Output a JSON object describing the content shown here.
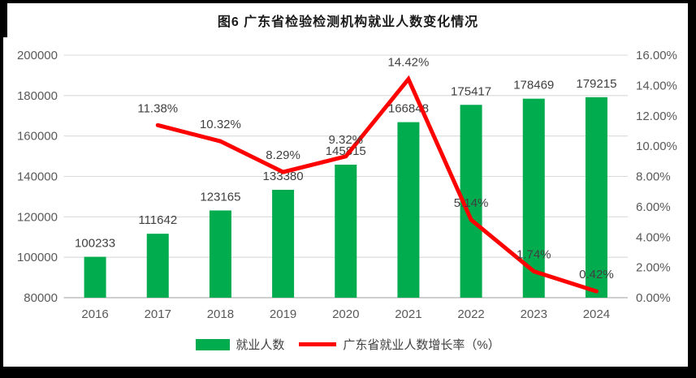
{
  "frame": {
    "background": "#000000",
    "canvas_background": "#ffffff"
  },
  "chart_data": {
    "type": "bar",
    "subtype": "combo-bar-line",
    "title": "图6  广东省检验检测机构就业人数变化情况",
    "categories": [
      "2016",
      "2017",
      "2018",
      "2019",
      "2020",
      "2021",
      "2022",
      "2023",
      "2024"
    ],
    "series": [
      {
        "name": "就业人数",
        "chart": "bar",
        "axis": "left",
        "color": "#00AC4E",
        "values": [
          100233,
          111642,
          123165,
          133380,
          145815,
          166848,
          175417,
          178469,
          179215
        ],
        "value_labels": [
          "100233",
          "111642",
          "123165",
          "133380",
          "145815",
          "166848",
          "175417",
          "178469",
          "179215"
        ]
      },
      {
        "name": "广东省就业人数增长率（%）",
        "chart": "line",
        "axis": "right",
        "color": "#FF0000",
        "values": [
          null,
          11.38,
          10.32,
          8.29,
          9.32,
          14.42,
          5.14,
          1.74,
          0.42
        ],
        "point_labels": [
          "",
          "11.38%",
          "10.32%",
          "8.29%",
          "9.32%",
          "14.42%",
          "5.14%",
          "1.74%",
          "0.42%"
        ]
      }
    ],
    "left_axis": {
      "min": 80000,
      "max": 200000,
      "tick_values": [
        80000,
        100000,
        120000,
        140000,
        160000,
        180000,
        200000
      ],
      "tick_labels": [
        "80000",
        "100000",
        "120000",
        "140000",
        "160000",
        "180000",
        "200000"
      ]
    },
    "right_axis": {
      "min": 0,
      "max": 16,
      "tick_values": [
        0,
        2,
        4,
        6,
        8,
        10,
        12,
        14,
        16
      ],
      "tick_labels": [
        "0.00%",
        "2.00%",
        "4.00%",
        "6.00%",
        "8.00%",
        "10.00%",
        "12.00%",
        "14.00%",
        "16.00%"
      ]
    },
    "grid": "horizontal",
    "legend_position": "bottom",
    "colors": {
      "grid": "#D9D9D9",
      "axis_line": "#BFBFBF",
      "tick_text": "#595959",
      "label_text": "#404040",
      "bar": "#00AC4E",
      "line": "#FF0000"
    }
  }
}
